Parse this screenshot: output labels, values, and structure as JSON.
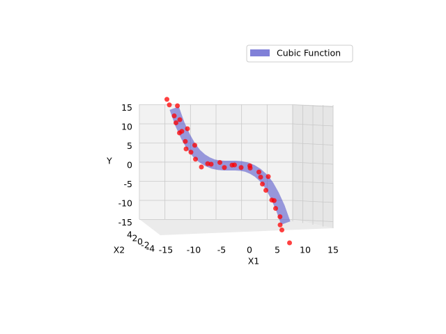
{
  "chart_data": {
    "type": "scatter3d",
    "xlabel": "X1",
    "ylabel": "Y",
    "zlabel": "X2",
    "xlim": [
      -15,
      15
    ],
    "xticks": [
      -15,
      -10,
      -5,
      0,
      5,
      10,
      15
    ],
    "ylim": [
      -15,
      15
    ],
    "yticks": [
      -15,
      -10,
      -5,
      0,
      5,
      10,
      15
    ],
    "zlim": [
      -4,
      4
    ],
    "zticks": [
      4,
      2,
      0,
      -2,
      -4
    ],
    "grid": true,
    "legend": "upper right",
    "surface": {
      "name": "Cubic Function",
      "color": "#5a5acc",
      "x": [
        -10,
        -9,
        -8,
        -7,
        -6,
        -5,
        -4,
        -3,
        -2,
        -1,
        0,
        1,
        2,
        3,
        4,
        5,
        6,
        7,
        8,
        9,
        10
      ],
      "values": [
        15,
        10.9,
        7.7,
        5.1,
        3.2,
        1.9,
        1,
        0.4,
        0.1,
        0,
        0,
        0,
        -0.1,
        -0.4,
        -1,
        -1.9,
        -3.2,
        -5.1,
        -7.7,
        -10.9,
        -15
      ]
    },
    "scatter": {
      "color": "#ff0000",
      "x": [
        -11.5,
        -10.5,
        -10,
        -9.8,
        -9.5,
        -9.2,
        -9,
        -8.5,
        -8.2,
        -8,
        -7.5,
        -7,
        -6.5,
        -6,
        -5.5,
        -4,
        -3,
        -2,
        -1,
        0,
        1,
        2,
        3,
        4,
        5,
        5.5,
        6,
        6.5,
        7,
        7.5,
        8,
        8.3,
        8.6,
        9,
        9.5,
        10.5
      ],
      "z": [
        1,
        -2,
        0,
        2,
        -1,
        3,
        0,
        -3,
        1,
        2,
        -2,
        0,
        1,
        -1,
        2,
        0,
        -2,
        1,
        0,
        2,
        -1,
        0,
        3,
        -2,
        1,
        0,
        -1,
        2,
        -3,
        0,
        1,
        -2,
        2,
        0,
        -1,
        1
      ],
      "values": [
        17.5,
        15.5,
        13,
        16,
        11,
        9.5,
        12,
        8,
        6.5,
        10,
        4,
        3.5,
        5.5,
        1.5,
        0,
        0.5,
        0,
        1,
        -0.5,
        0.5,
        0,
        -0.5,
        0.5,
        -1,
        -1.5,
        -3,
        -5,
        -2.5,
        -7,
        -9,
        -11,
        -9.5,
        -13,
        -15.5,
        -17,
        -20
      ]
    }
  }
}
